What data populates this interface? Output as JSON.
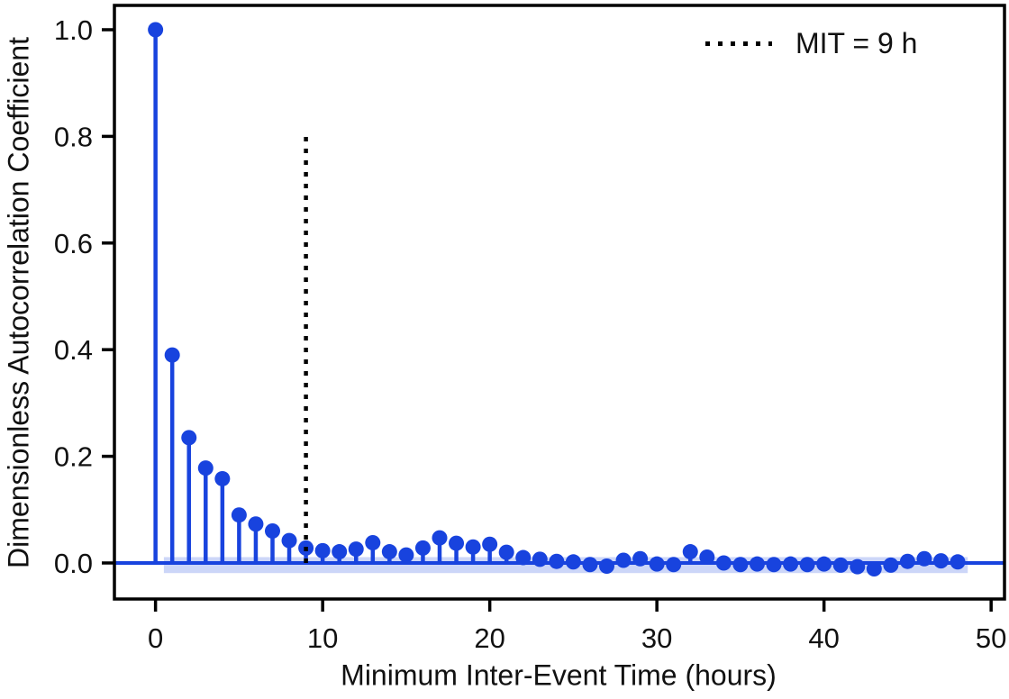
{
  "colors": {
    "stem": "#1843DE",
    "band": "#1843DE",
    "band_opacity": 0.22,
    "frame": "#000000",
    "tick_text": "#111111",
    "vline": "#000000",
    "background": "#FFFFFF"
  },
  "chart_data": {
    "type": "stem",
    "title": "",
    "xlabel": "Minimum Inter-Event Time (hours)",
    "ylabel": "Dimensionless Autocorrelation Coefficient",
    "xlim": [
      -2.46,
      50.8
    ],
    "ylim": [
      -0.0676,
      1.0456
    ],
    "grid": false,
    "x_ticks": {
      "values": [
        0,
        10,
        20,
        30,
        40,
        50
      ],
      "labels": [
        "0",
        "10",
        "20",
        "30",
        "40",
        "50"
      ]
    },
    "y_ticks": {
      "values": [
        0,
        0.2,
        0.4,
        0.6,
        0.8,
        1.0
      ],
      "labels": [
        "0.0",
        "0.2",
        "0.4",
        "0.6",
        "0.8",
        "1.0"
      ]
    },
    "x": [
      0,
      1,
      2,
      3,
      4,
      5,
      6,
      7,
      8,
      9,
      10,
      11,
      12,
      13,
      14,
      15,
      16,
      17,
      18,
      19,
      20,
      21,
      22,
      23,
      24,
      25,
      26,
      27,
      28,
      29,
      30,
      31,
      32,
      33,
      34,
      35,
      36,
      37,
      38,
      39,
      40,
      41,
      42,
      43,
      44,
      45,
      46,
      47,
      48
    ],
    "values": [
      1.0,
      0.39,
      0.235,
      0.178,
      0.158,
      0.09,
      0.073,
      0.06,
      0.042,
      0.028,
      0.023,
      0.021,
      0.026,
      0.038,
      0.021,
      0.015,
      0.028,
      0.047,
      0.037,
      0.03,
      0.035,
      0.02,
      0.01,
      0.007,
      0.003,
      0.002,
      -0.003,
      -0.006,
      0.005,
      0.008,
      -0.002,
      -0.003,
      0.021,
      0.011,
      0.0,
      -0.003,
      -0.002,
      -0.003,
      -0.002,
      -0.003,
      -0.002,
      -0.004,
      -0.007,
      -0.011,
      -0.004,
      0.003,
      0.008,
      0.004,
      0.002
    ],
    "zero_line_y": 0,
    "confidence_band": {
      "x_start": 0.5,
      "x_end": 48.6,
      "y_top": 0.011,
      "y_bottom": -0.019
    },
    "mit_line": {
      "x": 9,
      "y_start": 0,
      "y_end": 0.8,
      "style": "dotted"
    },
    "legend": {
      "label": "MIT = 9 h",
      "position": "upper right",
      "line_style": "dotted"
    }
  }
}
